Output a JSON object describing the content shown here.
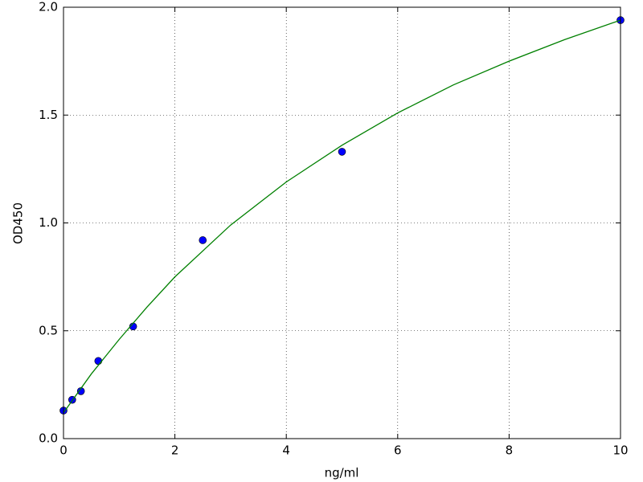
{
  "chart_data": {
    "type": "scatter",
    "x_label": "ng/ml",
    "y_label": "OD450",
    "xlim": [
      0,
      10
    ],
    "ylim": [
      0,
      2.0
    ],
    "xticks": [
      0,
      2,
      4,
      6,
      8,
      10
    ],
    "yticks": [
      {
        "value": 0,
        "label": "0.0"
      },
      {
        "value": 0.5,
        "label": "0.5"
      },
      {
        "value": 1.0,
        "label": "1.0"
      },
      {
        "value": 1.5,
        "label": "1.5"
      },
      {
        "value": 2.0,
        "label": "2.0"
      }
    ],
    "grid": true,
    "series": [
      {
        "style": "marker",
        "color": "#0000ff",
        "x": [
          0,
          0.156,
          0.3125,
          0.625,
          1.25,
          2.5,
          5,
          10
        ],
        "values": [
          0.13,
          0.18,
          0.22,
          0.36,
          0.52,
          0.92,
          1.33,
          1.94
        ]
      },
      {
        "style": "line",
        "color": "#008000",
        "x": [
          0,
          0.5,
          1,
          1.5,
          2,
          3,
          4,
          5,
          6,
          7,
          8,
          9,
          10
        ],
        "values": [
          0.12,
          0.3,
          0.46,
          0.61,
          0.75,
          0.99,
          1.19,
          1.36,
          1.51,
          1.64,
          1.75,
          1.85,
          1.94
        ]
      }
    ]
  }
}
